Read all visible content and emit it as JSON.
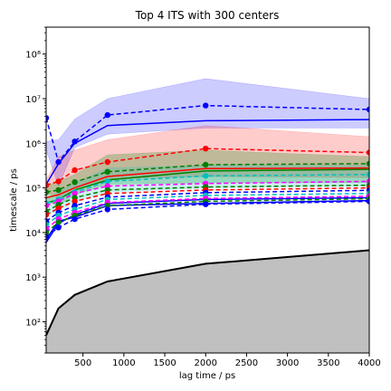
{
  "chart_data": {
    "type": "line",
    "title": "Top 4 ITS with 300 centers",
    "xlabel": "lag time / ps",
    "ylabel": "timescale / ps",
    "yscale": "log",
    "xlim": [
      50,
      4000
    ],
    "ylim": [
      20,
      400000000
    ],
    "xticks": [
      500,
      1000,
      1500,
      2000,
      2500,
      3000,
      3500,
      4000
    ],
    "yticks": [
      {
        "value": 100,
        "label": "10²"
      },
      {
        "value": 1000,
        "label": "10³"
      },
      {
        "value": 10000,
        "label": "10⁴"
      },
      {
        "value": 100000,
        "label": "10⁵"
      },
      {
        "value": 1000000,
        "label": "10⁶"
      },
      {
        "value": 10000000,
        "label": "10⁷"
      },
      {
        "value": 100000000,
        "label": "10⁸"
      }
    ],
    "x": [
      50,
      200,
      400,
      800,
      2000,
      4000
    ],
    "cutoff": {
      "name": "lag time limit",
      "color": "#000000",
      "fill": "#c0c0c0",
      "values": [
        50,
        200,
        400,
        800,
        2000,
        4000
      ]
    },
    "bands": [
      {
        "name": "its-1-band",
        "color": "#0000ff",
        "alpha": 0.2,
        "lower": [
          700000,
          110000,
          800000,
          1600000,
          2200000,
          2200000
        ],
        "upper": [
          1100000,
          1200000,
          3500000,
          10000000,
          28000000,
          10000000
        ]
      },
      {
        "name": "its-2-band",
        "color": "#ff0000",
        "alpha": 0.2,
        "lower": [
          80000,
          60000,
          100000,
          160000,
          180000,
          170000
        ],
        "upper": [
          150000,
          500000,
          700000,
          1200000,
          2500000,
          1400000
        ]
      },
      {
        "name": "its-3-band",
        "color": "#008000",
        "alpha": 0.25,
        "lower": [
          50000,
          40000,
          70000,
          120000,
          130000,
          130000
        ],
        "upper": [
          110000,
          140000,
          200000,
          550000,
          700000,
          500000
        ]
      },
      {
        "name": "its-4-band",
        "color": "#00bfbf",
        "alpha": 0.2,
        "lower": [
          25000,
          30000,
          50000,
          80000,
          100000,
          110000
        ],
        "upper": [
          60000,
          80000,
          130000,
          280000,
          320000,
          320000
        ]
      }
    ],
    "estimate_series": [
      {
        "color": "#0000ff",
        "values": [
          3700000,
          380000,
          1100000,
          4300000,
          7000000,
          5700000
        ]
      },
      {
        "color": "#ff0000",
        "values": [
          115000,
          140000,
          250000,
          380000,
          760000,
          620000
        ]
      },
      {
        "color": "#008000",
        "values": [
          80000,
          90000,
          135000,
          230000,
          330000,
          350000
        ]
      },
      {
        "color": "#00bfbf",
        "values": [
          45000,
          55000,
          80000,
          140000,
          185000,
          200000
        ]
      },
      {
        "color": "#ff00ff",
        "values": [
          40000,
          50000,
          75000,
          110000,
          125000,
          140000
        ]
      },
      {
        "color": "#008000",
        "values": [
          30000,
          42000,
          60000,
          90000,
          105000,
          115000
        ]
      },
      {
        "color": "#ff0000",
        "values": [
          25000,
          35000,
          50000,
          75000,
          90000,
          100000
        ]
      },
      {
        "color": "#0000ff",
        "values": [
          18000,
          28000,
          40000,
          62000,
          78000,
          88000
        ]
      },
      {
        "color": "#00bfbf",
        "values": [
          15000,
          24000,
          33000,
          55000,
          68000,
          75000
        ]
      },
      {
        "color": "#ff00ff",
        "values": [
          12000,
          20000,
          28000,
          47000,
          58000,
          65000
        ]
      },
      {
        "color": "#008000",
        "values": [
          10000,
          17000,
          24000,
          40000,
          50000,
          57000
        ]
      },
      {
        "color": "#0000ff",
        "values": [
          8000,
          13000,
          20000,
          33000,
          43000,
          50000
        ]
      }
    ],
    "mean_series": [
      {
        "color": "#0000ff",
        "values": [
          120000,
          350000,
          1000000,
          2500000,
          3200000,
          3400000
        ]
      },
      {
        "color": "#ff0000",
        "values": [
          60000,
          70000,
          100000,
          180000,
          270000,
          280000
        ]
      },
      {
        "color": "#008000",
        "values": [
          45000,
          55000,
          90000,
          150000,
          240000,
          260000
        ]
      },
      {
        "color": "#0000ff",
        "values": [
          6000,
          16000,
          25000,
          45000,
          55000,
          60000
        ]
      },
      {
        "color": "#0000ff",
        "values": [
          7000,
          18000,
          22000,
          40000,
          45000,
          52000
        ]
      }
    ]
  }
}
